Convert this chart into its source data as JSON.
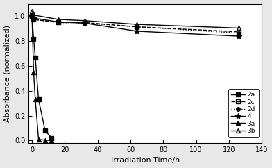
{
  "title": "",
  "xlabel": "Irradiation Time/h",
  "ylabel": "Absorbance (normalized)",
  "xlim": [
    -2,
    140
  ],
  "ylim": [
    -0.02,
    1.1
  ],
  "yticks": [
    0.0,
    0.2,
    0.4,
    0.6,
    0.8,
    1.0
  ],
  "xticks": [
    0,
    20,
    40,
    60,
    80,
    100,
    120,
    140
  ],
  "series": {
    "2a": {
      "x": [
        0,
        1,
        2,
        4,
        8,
        12
      ],
      "y": [
        1.0,
        0.82,
        0.67,
        0.33,
        0.08,
        0.02
      ],
      "linestyle": "-",
      "marker": "s",
      "markersize": 4,
      "fillstyle": "full",
      "color": "black",
      "linewidth": 1.0
    },
    "2c": {
      "x": [
        0,
        1,
        16,
        32,
        64,
        126
      ],
      "y": [
        1.0,
        0.975,
        0.95,
        0.95,
        0.915,
        0.875
      ],
      "linestyle": "--",
      "marker": "s",
      "markersize": 4,
      "fillstyle": "none",
      "color": "black",
      "linewidth": 1.0
    },
    "2d": {
      "x": [
        0,
        1,
        16,
        32,
        64,
        126
      ],
      "y": [
        1.0,
        0.975,
        0.95,
        0.945,
        0.915,
        0.865
      ],
      "linestyle": ":",
      "marker": "o",
      "markersize": 4,
      "fillstyle": "full",
      "color": "black",
      "linewidth": 1.0
    },
    "4": {
      "x": [
        0,
        1,
        16,
        32,
        64,
        126
      ],
      "y": [
        1.0,
        0.985,
        0.955,
        0.945,
        0.88,
        0.84
      ],
      "linestyle": "-",
      "marker": "*",
      "markersize": 6,
      "fillstyle": "full",
      "color": "black",
      "linewidth": 1.0
    },
    "3a": {
      "x": [
        0,
        1,
        2,
        4,
        8,
        12
      ],
      "y": [
        1.0,
        0.55,
        0.33,
        0.01,
        0.003,
        0.001
      ],
      "linestyle": "-",
      "marker": "^",
      "markersize": 5,
      "fillstyle": "full",
      "color": "black",
      "linewidth": 1.0
    },
    "3b": {
      "x": [
        0,
        1,
        16,
        32,
        64,
        126
      ],
      "y": [
        1.04,
        1.01,
        0.975,
        0.965,
        0.935,
        0.905
      ],
      "linestyle": "-",
      "marker": "^",
      "markersize": 5,
      "fillstyle": "none",
      "color": "black",
      "linewidth": 1.0
    }
  },
  "legend_order": [
    "2a",
    "2c",
    "2d",
    "4",
    "3a",
    "3b"
  ],
  "background_color": "#ffffff",
  "outer_bg": "#e8e8e8"
}
